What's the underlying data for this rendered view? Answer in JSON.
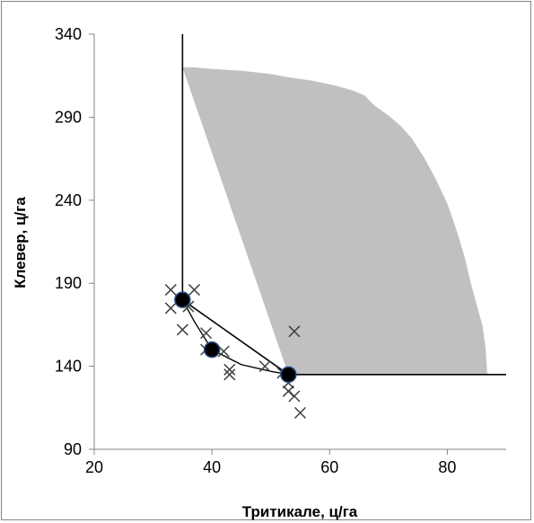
{
  "chart_data": {
    "type": "scatter",
    "title": "",
    "xlabel": "Тритикале, ц/га",
    "ylabel": "Клевер, ц/га",
    "xlim": [
      20,
      90
    ],
    "ylim": [
      90,
      340
    ],
    "xticks": [
      20,
      40,
      60,
      80
    ],
    "yticks": [
      90,
      140,
      190,
      240,
      290,
      340
    ],
    "grid": false,
    "legend": "none",
    "colors": {
      "region": "#c0c0c0",
      "line": "#000000",
      "cross": "#404040",
      "dot": "#000000",
      "dot_edge": "#2a4f86"
    },
    "series": [
      {
        "kind": "area",
        "points": [
          [
            35,
            320
          ],
          [
            37,
            320
          ],
          [
            40,
            319
          ],
          [
            45,
            318
          ],
          [
            50,
            316
          ],
          [
            53,
            314
          ],
          [
            57,
            312
          ],
          [
            61,
            309
          ],
          [
            64,
            306
          ],
          [
            66,
            303
          ],
          [
            67,
            299
          ],
          [
            68,
            296
          ],
          [
            70,
            291
          ],
          [
            72,
            285
          ],
          [
            74,
            277
          ],
          [
            76,
            266
          ],
          [
            78,
            253
          ],
          [
            80,
            238
          ],
          [
            81,
            228
          ],
          [
            82,
            217
          ],
          [
            83,
            205
          ],
          [
            84,
            190
          ],
          [
            85,
            177
          ],
          [
            86,
            164
          ],
          [
            86.5,
            151
          ],
          [
            86.7,
            140
          ],
          [
            86.8,
            135
          ],
          [
            53,
            135
          ],
          [
            53,
            135
          ]
        ]
      },
      {
        "kind": "boundary",
        "points": [
          [
            35,
            340
          ],
          [
            35,
            180
          ],
          [
            53,
            135
          ],
          [
            90,
            135
          ]
        ]
      },
      {
        "kind": "line",
        "points": [
          [
            35,
            180
          ],
          [
            37,
            167
          ],
          [
            40,
            150
          ],
          [
            45,
            141
          ],
          [
            50,
            137
          ],
          [
            53,
            135
          ]
        ]
      },
      {
        "kind": "crosses",
        "points": [
          [
            33,
            186
          ],
          [
            33,
            175
          ],
          [
            35,
            162
          ],
          [
            37,
            186
          ],
          [
            36,
            176
          ],
          [
            39,
            160
          ],
          [
            39,
            150
          ],
          [
            42,
            149
          ],
          [
            43,
            138
          ],
          [
            43,
            135
          ],
          [
            49,
            140
          ],
          [
            52,
            136
          ],
          [
            53,
            130
          ],
          [
            53,
            125
          ],
          [
            54,
            122
          ],
          [
            55,
            112
          ],
          [
            54,
            161
          ]
        ]
      },
      {
        "kind": "dots",
        "points": [
          [
            35,
            180
          ],
          [
            40,
            150
          ],
          [
            53,
            135
          ]
        ]
      }
    ]
  }
}
